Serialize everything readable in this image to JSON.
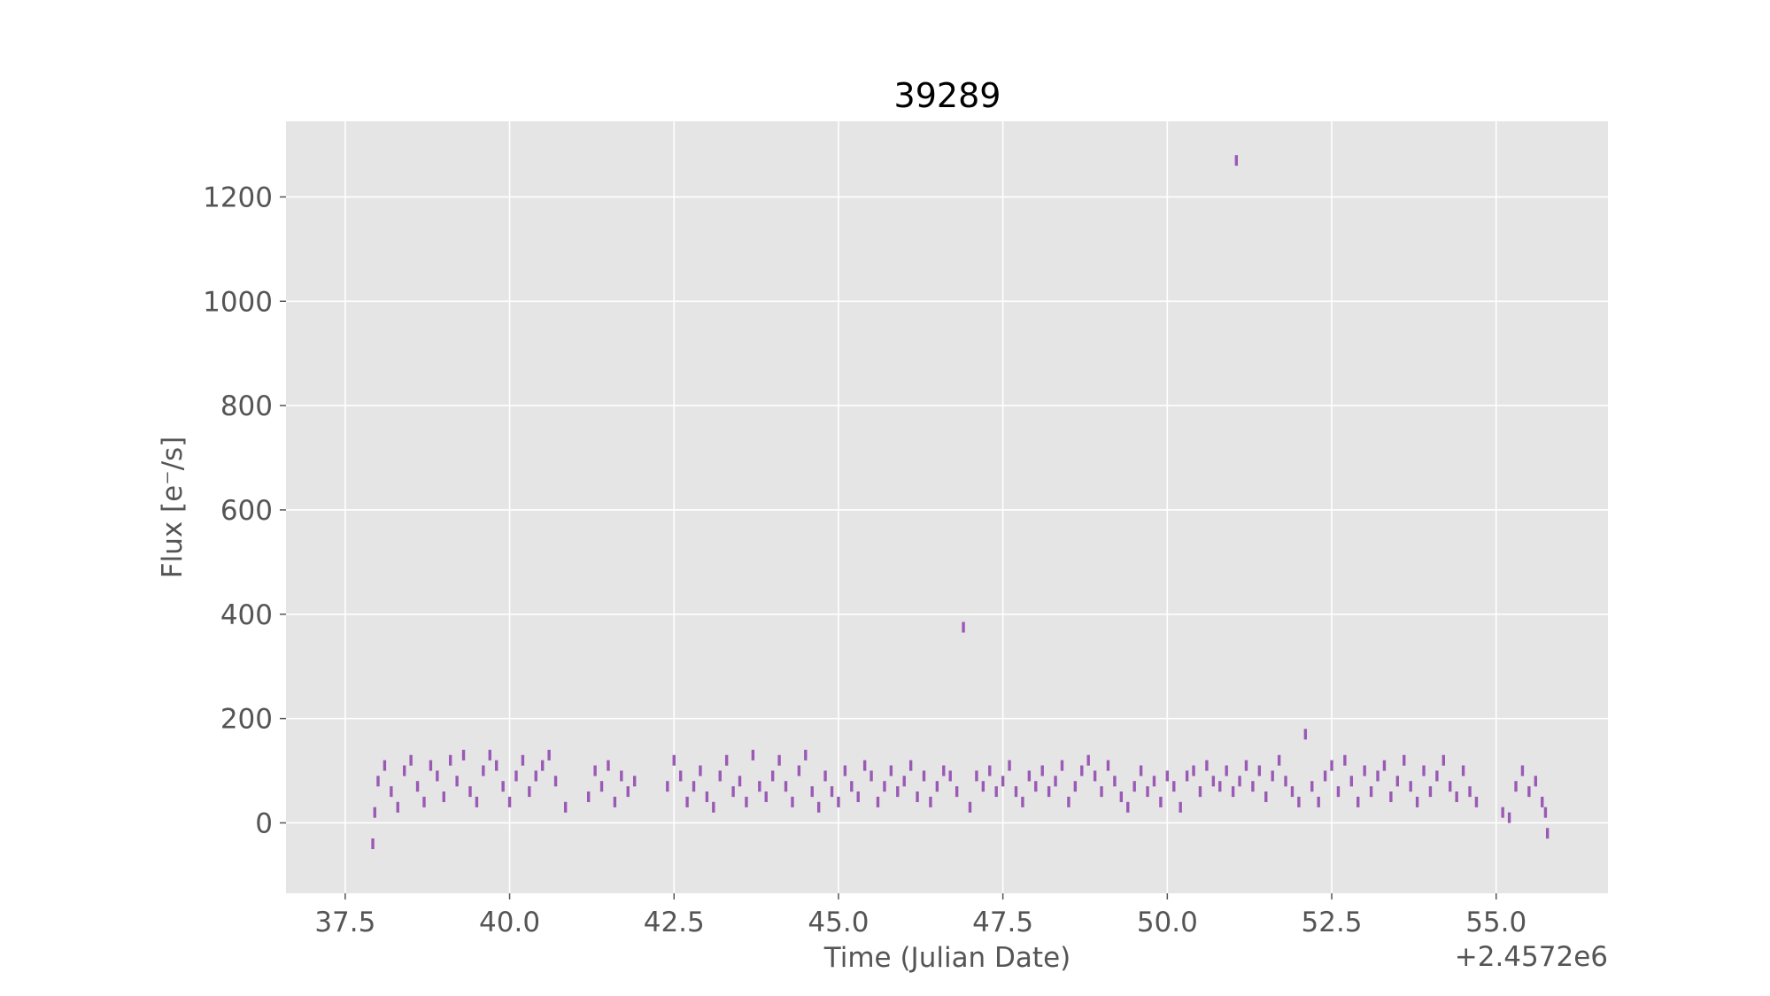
{
  "chart_data": {
    "type": "scatter",
    "title": "39289",
    "xlabel": "Time (Julian Date)",
    "ylabel": "Flux [e⁻/s]",
    "x_offset_label": "+2.4572e6",
    "xlim": [
      36.6,
      56.7
    ],
    "ylim": [
      -135,
      1345
    ],
    "x_ticks": [
      37.5,
      40.0,
      42.5,
      45.0,
      47.5,
      50.0,
      52.5,
      55.0
    ],
    "x_tick_labels": [
      "37.5",
      "40.0",
      "42.5",
      "45.0",
      "47.5",
      "50.0",
      "52.5",
      "55.0"
    ],
    "y_ticks": [
      0,
      200,
      400,
      600,
      800,
      1000,
      1200
    ],
    "y_tick_labels": [
      "0",
      "200",
      "400",
      "600",
      "800",
      "1000",
      "1200"
    ],
    "grid": true,
    "colors": {
      "series": "#9b59b6",
      "plot_bg": "#e5e5e5",
      "grid": "#ffffff"
    },
    "series": [
      {
        "x": [
          37.92,
          37.95,
          38.0,
          38.1,
          38.2,
          38.3,
          38.4,
          38.5,
          38.6,
          38.7,
          38.8,
          38.9,
          39.0,
          39.1,
          39.2,
          39.3,
          39.4,
          39.5,
          39.6,
          39.7,
          39.8,
          39.9,
          40.0,
          40.1,
          40.2,
          40.3,
          40.4,
          40.5,
          40.6,
          40.7,
          40.85,
          41.2,
          41.3,
          41.4,
          41.5,
          41.6,
          41.7,
          41.8,
          41.9,
          42.4,
          42.5,
          42.6,
          42.7,
          42.8,
          42.9,
          43.0,
          43.1,
          43.2,
          43.3,
          43.4,
          43.5,
          43.6,
          43.7,
          43.8,
          43.9,
          44.0,
          44.1,
          44.2,
          44.3,
          44.4,
          44.5,
          44.6,
          44.7,
          44.8,
          44.9,
          45.0,
          45.1,
          45.2,
          45.3,
          45.4,
          45.5,
          45.6,
          45.7,
          45.8,
          45.9,
          46.0,
          46.1,
          46.2,
          46.3,
          46.4,
          46.5,
          46.6,
          46.7,
          46.8,
          46.9,
          47.0,
          47.1,
          47.2,
          47.3,
          47.4,
          47.5,
          47.6,
          47.7,
          47.8,
          47.9,
          48.0,
          48.1,
          48.2,
          48.3,
          48.4,
          48.5,
          48.6,
          48.7,
          48.8,
          48.9,
          49.0,
          49.1,
          49.2,
          49.3,
          49.4,
          49.5,
          49.6,
          49.7,
          49.8,
          49.9,
          50.0,
          50.1,
          50.2,
          50.3,
          50.4,
          50.5,
          50.6,
          50.7,
          50.8,
          50.9,
          51.0,
          51.05,
          51.1,
          51.2,
          51.3,
          51.4,
          51.5,
          51.6,
          51.7,
          51.8,
          51.9,
          52.0,
          52.1,
          52.2,
          52.3,
          52.4,
          52.5,
          52.6,
          52.7,
          52.8,
          52.9,
          53.0,
          53.1,
          53.2,
          53.3,
          53.4,
          53.5,
          53.6,
          53.7,
          53.8,
          53.9,
          54.0,
          54.1,
          54.2,
          54.3,
          54.4,
          54.5,
          54.6,
          54.7,
          55.1,
          55.2,
          55.3,
          55.4,
          55.5,
          55.6,
          55.7,
          55.75,
          55.78
        ],
        "y": [
          -40,
          20,
          80,
          110,
          60,
          30,
          100,
          120,
          70,
          40,
          110,
          90,
          50,
          120,
          80,
          130,
          60,
          40,
          100,
          130,
          110,
          70,
          40,
          90,
          120,
          60,
          90,
          110,
          130,
          80,
          30,
          50,
          100,
          70,
          110,
          40,
          90,
          60,
          80,
          70,
          120,
          90,
          40,
          70,
          100,
          50,
          30,
          90,
          120,
          60,
          80,
          40,
          130,
          70,
          50,
          90,
          120,
          70,
          40,
          100,
          130,
          60,
          30,
          90,
          60,
          40,
          100,
          70,
          50,
          110,
          90,
          40,
          70,
          100,
          60,
          80,
          110,
          50,
          90,
          40,
          70,
          100,
          90,
          60,
          375,
          30,
          90,
          70,
          100,
          60,
          80,
          110,
          60,
          40,
          90,
          70,
          100,
          60,
          80,
          110,
          40,
          70,
          100,
          120,
          90,
          60,
          110,
          80,
          50,
          30,
          70,
          100,
          60,
          80,
          40,
          90,
          70,
          30,
          90,
          100,
          60,
          110,
          80,
          70,
          100,
          60,
          1270,
          80,
          110,
          70,
          100,
          50,
          90,
          120,
          80,
          60,
          40,
          170,
          70,
          40,
          90,
          110,
          60,
          120,
          80,
          40,
          100,
          60,
          90,
          110,
          50,
          80,
          120,
          70,
          40,
          100,
          60,
          90,
          120,
          70,
          50,
          100,
          60,
          40,
          20,
          10,
          70,
          100,
          60,
          80,
          40,
          20,
          -20
        ]
      }
    ]
  }
}
